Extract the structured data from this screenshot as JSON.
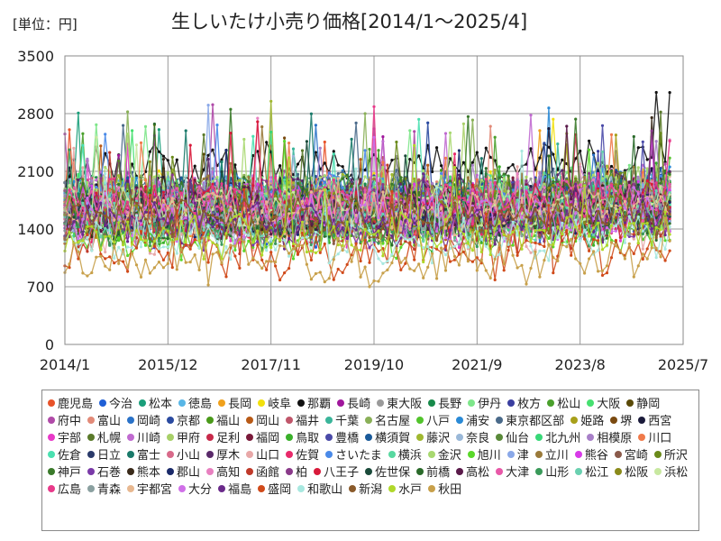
{
  "unit_label": "[単位：円]",
  "chart_data": {
    "type": "line",
    "title": "生しいたけ小売り価格[2014/1～2025/4]",
    "xlabel": "",
    "ylabel": "",
    "ylim": [
      0,
      3500
    ],
    "yticks": [
      0,
      700,
      1400,
      2100,
      2800,
      3500
    ],
    "xlim": [
      "2014/1",
      "2025/7"
    ],
    "xticks": [
      "2014/1",
      "2015/12",
      "2017/11",
      "2019/10",
      "2021/9",
      "2023/8",
      "2025/7"
    ],
    "grid": true,
    "legend_position": "bottom",
    "series": [
      {
        "name": "鹿児島",
        "color": "#e8532a",
        "base": 1650
      },
      {
        "name": "今治",
        "color": "#1f5fd6",
        "base": 1500
      },
      {
        "name": "松本",
        "color": "#1a9e7a",
        "base": 1700
      },
      {
        "name": "徳島",
        "color": "#58b6e6",
        "base": 1750
      },
      {
        "name": "長岡",
        "color": "#f0a11c",
        "base": 1600
      },
      {
        "name": "岐阜",
        "color": "#f2e00c",
        "base": 1800
      },
      {
        "name": "那覇",
        "color": "#111111",
        "base": 2150
      },
      {
        "name": "長崎",
        "color": "#a0179c",
        "base": 1650
      },
      {
        "name": "東大阪",
        "color": "#9a9a9a",
        "base": 1700
      },
      {
        "name": "長野",
        "color": "#178a4a",
        "base": 1750
      },
      {
        "name": "伊丹",
        "color": "#7ee68a",
        "base": 1800
      },
      {
        "name": "枚方",
        "color": "#3b3fa0",
        "base": 1650
      },
      {
        "name": "松山",
        "color": "#4aa02c",
        "base": 1600
      },
      {
        "name": "大阪",
        "color": "#46e070",
        "base": 1750
      },
      {
        "name": "静岡",
        "color": "#5a4a08",
        "base": 1700
      },
      {
        "name": "府中",
        "color": "#b04aa8",
        "base": 1800
      },
      {
        "name": "富山",
        "color": "#e28a78",
        "base": 1650
      },
      {
        "name": "岡崎",
        "color": "#2a72c8",
        "base": 1700
      },
      {
        "name": "京都",
        "color": "#2a4aa0",
        "base": 1750
      },
      {
        "name": "福山",
        "color": "#4a9a1a",
        "base": 1550
      },
      {
        "name": "岡山",
        "color": "#b85a16",
        "base": 1500
      },
      {
        "name": "福井",
        "color": "#c0566a",
        "base": 1700
      },
      {
        "name": "千葉",
        "color": "#3ab59a",
        "base": 1650
      },
      {
        "name": "名古屋",
        "color": "#8ab058",
        "base": 1750
      },
      {
        "name": "八戸",
        "color": "#52c42c",
        "base": 1450
      },
      {
        "name": "浦安",
        "color": "#2a8ad6",
        "base": 1800
      },
      {
        "name": "東京都区部",
        "color": "#4a6a8a",
        "base": 1850
      },
      {
        "name": "姫路",
        "color": "#a8a01a",
        "base": 1600
      },
      {
        "name": "堺",
        "color": "#7a4a10",
        "base": 1700
      },
      {
        "name": "西宮",
        "color": "#1a1a3a",
        "base": 1750
      },
      {
        "name": "宇部",
        "color": "#e83ac8",
        "base": 1500
      },
      {
        "name": "札幌",
        "color": "#5a7a2a",
        "base": 1650
      },
      {
        "name": "川崎",
        "color": "#c06ad0",
        "base": 1800
      },
      {
        "name": "甲府",
        "color": "#a8d068",
        "base": 1700
      },
      {
        "name": "足利",
        "color": "#c82a4a",
        "base": 1550
      },
      {
        "name": "福岡",
        "color": "#7a1a3a",
        "base": 1700
      },
      {
        "name": "鳥取",
        "color": "#3ab02a",
        "base": 1450
      },
      {
        "name": "豊橋",
        "color": "#4a4aa8",
        "base": 1650
      },
      {
        "name": "横須賀",
        "color": "#1a5a9a",
        "base": 1750
      },
      {
        "name": "藤沢",
        "color": "#a0b830",
        "base": 1800
      },
      {
        "name": "奈良",
        "color": "#9ab8d8",
        "base": 1700
      },
      {
        "name": "仙台",
        "color": "#5a8a3a",
        "base": 1650
      },
      {
        "name": "北九州",
        "color": "#38d878",
        "base": 1600
      },
      {
        "name": "相模原",
        "color": "#a880c8",
        "base": 1750
      },
      {
        "name": "川口",
        "color": "#f07a4a",
        "base": 1700
      },
      {
        "name": "佐倉",
        "color": "#4ae0b0",
        "base": 1650
      },
      {
        "name": "日立",
        "color": "#2a3a6a",
        "base": 1550
      },
      {
        "name": "富士",
        "color": "#1a7a6a",
        "base": 1650
      },
      {
        "name": "小山",
        "color": "#d86a8a",
        "base": 1600
      },
      {
        "name": "厚木",
        "color": "#5a2a6a",
        "base": 1750
      },
      {
        "name": "山口",
        "color": "#e8a8a8",
        "base": 1400
      },
      {
        "name": "佐賀",
        "color": "#e82a6a",
        "base": 1500
      },
      {
        "name": "さいたま",
        "color": "#4a8ae8",
        "base": 1800
      },
      {
        "name": "横浜",
        "color": "#58d8a0",
        "base": 1750
      },
      {
        "name": "金沢",
        "color": "#a8d870",
        "base": 1850
      },
      {
        "name": "旭川",
        "color": "#5ad82a",
        "base": 1350
      },
      {
        "name": "津",
        "color": "#8aa8e8",
        "base": 1600
      },
      {
        "name": "立川",
        "color": "#9a7a3a",
        "base": 1750
      },
      {
        "name": "熊谷",
        "color": "#d83ae8",
        "base": 1650
      },
      {
        "name": "宮崎",
        "color": "#8a5a4a",
        "base": 1500
      },
      {
        "name": "所沢",
        "color": "#6a8a1a",
        "base": 1700
      },
      {
        "name": "神戸",
        "color": "#3a7a2a",
        "base": 1750
      },
      {
        "name": "石巻",
        "color": "#7a3aa8",
        "base": 1450
      },
      {
        "name": "熊本",
        "color": "#3a2a1a",
        "base": 1600
      },
      {
        "name": "郡山",
        "color": "#1a2a6a",
        "base": 1550
      },
      {
        "name": "高知",
        "color": "#e880c0",
        "base": 1650
      },
      {
        "name": "函館",
        "color": "#c03a2a",
        "base": 1400
      },
      {
        "name": "柏",
        "color": "#8a3a8a",
        "base": 1700
      },
      {
        "name": "八王子",
        "color": "#d81a3a",
        "base": 1650
      },
      {
        "name": "佐世保",
        "color": "#1a4a3a",
        "base": 1550
      },
      {
        "name": "前橋",
        "color": "#2a6a2a",
        "base": 1500
      },
      {
        "name": "高松",
        "color": "#5a1a4a",
        "base": 1600
      },
      {
        "name": "大津",
        "color": "#e858a8",
        "base": 1700
      },
      {
        "name": "山形",
        "color": "#3a9a5a",
        "base": 1450
      },
      {
        "name": "松江",
        "color": "#6ad0b0",
        "base": 1550
      },
      {
        "name": "松阪",
        "color": "#8a8a1a",
        "base": 1600
      },
      {
        "name": "浜松",
        "color": "#c8e8a0",
        "base": 1650
      },
      {
        "name": "広島",
        "color": "#e83a8a",
        "base": 1700
      },
      {
        "name": "青森",
        "color": "#8aa0a0",
        "base": 1500
      },
      {
        "name": "宇都宮",
        "color": "#e8b890",
        "base": 1600
      },
      {
        "name": "大分",
        "color": "#d070e8",
        "base": 1550
      },
      {
        "name": "福島",
        "color": "#6a2a8a",
        "base": 1450
      },
      {
        "name": "盛岡",
        "color": "#d04a1a",
        "base": 1100
      },
      {
        "name": "和歌山",
        "color": "#a8e8e0",
        "base": 1250
      },
      {
        "name": "新潟",
        "color": "#8a5a2a",
        "base": 1500
      },
      {
        "name": "水戸",
        "color": "#b0d82a",
        "base": 1300
      },
      {
        "name": "秋田",
        "color": "#c8a04a",
        "base": 1000
      }
    ]
  }
}
